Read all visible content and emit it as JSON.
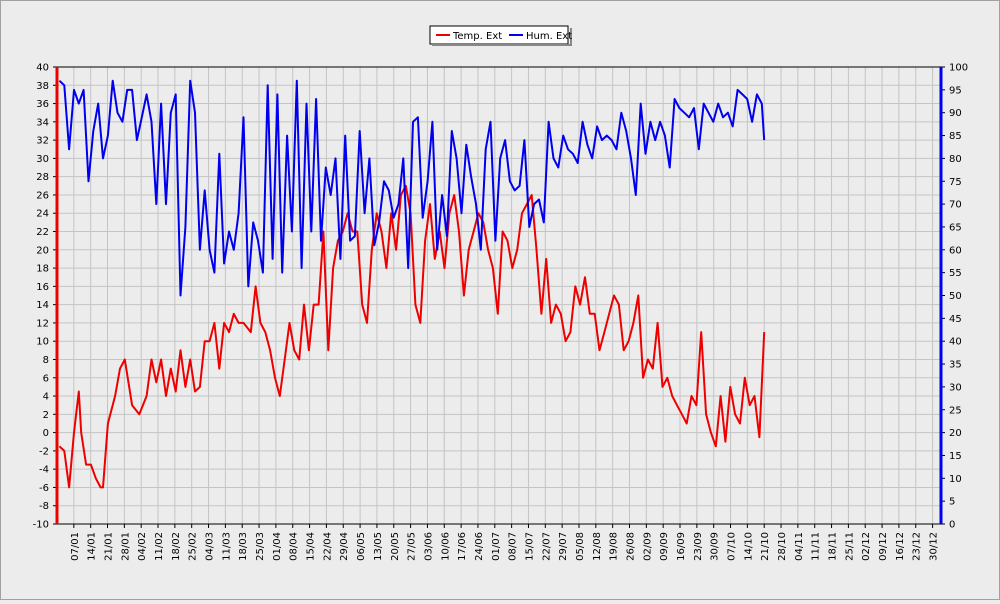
{
  "chart_data": {
    "type": "line",
    "legend_position": "top-center",
    "grid": true,
    "xlabel": "",
    "ylabel_left": "",
    "ylabel_right": "",
    "y_left": {
      "range": [
        -10,
        40
      ],
      "ticks": [
        "-10",
        "-8",
        "-6",
        "-4",
        "-2",
        "0",
        "2",
        "4",
        "6",
        "8",
        "10",
        "12",
        "14",
        "16",
        "18",
        "20",
        "22",
        "24",
        "26",
        "28",
        "30",
        "32",
        "34",
        "36",
        "38",
        "40"
      ]
    },
    "y_right": {
      "range": [
        0,
        100
      ],
      "ticks": [
        "0",
        "5",
        "10",
        "15",
        "20",
        "25",
        "30",
        "35",
        "40",
        "45",
        "50",
        "55",
        "60",
        "65",
        "70",
        "75",
        "80",
        "85",
        "90",
        "95",
        "100"
      ]
    },
    "x_range_days": 365,
    "x_ticks": [
      "07/01",
      "14/01",
      "21/01",
      "28/01",
      "04/02",
      "11/02",
      "18/02",
      "25/02",
      "04/03",
      "11/03",
      "18/03",
      "25/03",
      "01/04",
      "08/04",
      "15/04",
      "22/04",
      "29/04",
      "06/05",
      "13/05",
      "20/05",
      "27/05",
      "03/06",
      "10/06",
      "17/06",
      "24/06",
      "01/07",
      "08/07",
      "15/07",
      "22/07",
      "29/07",
      "05/08",
      "12/08",
      "19/08",
      "26/08",
      "02/09",
      "09/09",
      "16/09",
      "23/09",
      "30/09",
      "07/10",
      "14/10",
      "21/10",
      "28/10",
      "04/11",
      "11/11",
      "18/11",
      "25/11",
      "02/12",
      "09/12",
      "16/12",
      "23/12",
      "30/12"
    ],
    "series": [
      {
        "name": "Temp. Ext",
        "axis": "left",
        "color": "#ee0000",
        "points": [
          [
            1,
            -1.5
          ],
          [
            3,
            -2
          ],
          [
            5,
            -6
          ],
          [
            7,
            0
          ],
          [
            9,
            4.5
          ],
          [
            10,
            0
          ],
          [
            12,
            -3.5
          ],
          [
            14,
            -3.5
          ],
          [
            16,
            -5
          ],
          [
            18,
            -6
          ],
          [
            19,
            -6
          ],
          [
            21,
            1
          ],
          [
            24,
            4
          ],
          [
            26,
            7
          ],
          [
            28,
            8
          ],
          [
            31,
            3
          ],
          [
            34,
            2
          ],
          [
            37,
            4
          ],
          [
            39,
            8
          ],
          [
            41,
            5.5
          ],
          [
            43,
            8
          ],
          [
            45,
            4
          ],
          [
            47,
            7
          ],
          [
            49,
            4.5
          ],
          [
            51,
            9
          ],
          [
            53,
            5
          ],
          [
            55,
            8
          ],
          [
            57,
            4.5
          ],
          [
            59,
            5
          ],
          [
            61,
            10
          ],
          [
            63,
            10
          ],
          [
            65,
            12
          ],
          [
            67,
            7
          ],
          [
            69,
            12
          ],
          [
            71,
            11
          ],
          [
            73,
            13
          ],
          [
            75,
            12
          ],
          [
            77,
            12
          ],
          [
            80,
            11
          ],
          [
            82,
            16
          ],
          [
            84,
            12
          ],
          [
            86,
            11
          ],
          [
            88,
            9
          ],
          [
            90,
            6
          ],
          [
            92,
            4
          ],
          [
            94,
            8
          ],
          [
            96,
            12
          ],
          [
            98,
            9
          ],
          [
            100,
            8
          ],
          [
            102,
            14
          ],
          [
            104,
            9
          ],
          [
            106,
            14
          ],
          [
            108,
            14
          ],
          [
            110,
            22
          ],
          [
            112,
            9
          ],
          [
            114,
            18
          ],
          [
            116,
            21
          ],
          [
            118,
            22
          ],
          [
            120,
            24
          ],
          [
            122,
            22
          ],
          [
            124,
            22
          ],
          [
            126,
            14
          ],
          [
            128,
            12
          ],
          [
            130,
            20
          ],
          [
            132,
            24
          ],
          [
            134,
            22
          ],
          [
            136,
            18
          ],
          [
            138,
            24
          ],
          [
            140,
            20
          ],
          [
            142,
            26
          ],
          [
            144,
            27
          ],
          [
            146,
            24
          ],
          [
            148,
            14
          ],
          [
            150,
            12
          ],
          [
            152,
            21
          ],
          [
            154,
            25
          ],
          [
            156,
            19
          ],
          [
            158,
            22
          ],
          [
            160,
            18
          ],
          [
            162,
            24
          ],
          [
            164,
            26
          ],
          [
            166,
            22
          ],
          [
            168,
            15
          ],
          [
            170,
            20
          ],
          [
            172,
            22
          ],
          [
            174,
            24
          ],
          [
            176,
            23
          ],
          [
            178,
            20
          ],
          [
            180,
            18
          ],
          [
            182,
            13
          ],
          [
            184,
            22
          ],
          [
            186,
            21
          ],
          [
            188,
            18
          ],
          [
            190,
            20
          ],
          [
            192,
            24
          ],
          [
            194,
            25
          ],
          [
            196,
            26
          ],
          [
            198,
            20
          ],
          [
            200,
            13
          ],
          [
            202,
            19
          ],
          [
            204,
            12
          ],
          [
            206,
            14
          ],
          [
            208,
            13
          ],
          [
            210,
            10
          ],
          [
            212,
            11
          ],
          [
            214,
            16
          ],
          [
            216,
            14
          ],
          [
            218,
            17
          ],
          [
            220,
            13
          ],
          [
            222,
            13
          ],
          [
            224,
            9
          ],
          [
            226,
            11
          ],
          [
            228,
            13
          ],
          [
            230,
            15
          ],
          [
            232,
            14
          ],
          [
            234,
            9
          ],
          [
            236,
            10
          ],
          [
            238,
            12
          ],
          [
            240,
            15
          ],
          [
            242,
            6
          ],
          [
            244,
            8
          ],
          [
            246,
            7
          ],
          [
            248,
            12
          ],
          [
            250,
            5
          ],
          [
            252,
            6
          ],
          [
            254,
            4
          ],
          [
            256,
            3
          ],
          [
            258,
            2
          ],
          [
            260,
            1
          ],
          [
            262,
            4
          ],
          [
            264,
            3
          ],
          [
            266,
            11
          ],
          [
            268,
            2
          ],
          [
            270,
            0
          ],
          [
            272,
            -1.5
          ],
          [
            274,
            4
          ],
          [
            276,
            -1
          ],
          [
            278,
            5
          ],
          [
            280,
            2
          ],
          [
            282,
            1
          ],
          [
            284,
            6
          ],
          [
            286,
            3
          ],
          [
            288,
            4
          ],
          [
            290,
            -0.5
          ],
          [
            292,
            11
          ]
        ]
      },
      {
        "name": "Hum. Ext",
        "axis": "right",
        "color": "#0000ee",
        "points": [
          [
            1,
            97
          ],
          [
            3,
            96
          ],
          [
            5,
            82
          ],
          [
            7,
            95
          ],
          [
            9,
            92
          ],
          [
            11,
            95
          ],
          [
            13,
            75
          ],
          [
            15,
            86
          ],
          [
            17,
            92
          ],
          [
            19,
            80
          ],
          [
            21,
            85
          ],
          [
            23,
            97
          ],
          [
            25,
            90
          ],
          [
            27,
            88
          ],
          [
            29,
            95
          ],
          [
            31,
            95
          ],
          [
            33,
            84
          ],
          [
            35,
            89
          ],
          [
            37,
            94
          ],
          [
            39,
            88
          ],
          [
            41,
            70
          ],
          [
            43,
            92
          ],
          [
            45,
            70
          ],
          [
            47,
            90
          ],
          [
            49,
            94
          ],
          [
            51,
            50
          ],
          [
            53,
            65
          ],
          [
            55,
            97
          ],
          [
            57,
            90
          ],
          [
            59,
            60
          ],
          [
            61,
            73
          ],
          [
            63,
            60
          ],
          [
            65,
            55
          ],
          [
            67,
            81
          ],
          [
            69,
            57
          ],
          [
            71,
            64
          ],
          [
            73,
            60
          ],
          [
            75,
            68
          ],
          [
            77,
            89
          ],
          [
            79,
            52
          ],
          [
            81,
            66
          ],
          [
            83,
            62
          ],
          [
            85,
            55
          ],
          [
            87,
            96
          ],
          [
            89,
            58
          ],
          [
            91,
            94
          ],
          [
            93,
            55
          ],
          [
            95,
            85
          ],
          [
            97,
            64
          ],
          [
            99,
            97
          ],
          [
            101,
            56
          ],
          [
            103,
            92
          ],
          [
            105,
            64
          ],
          [
            107,
            93
          ],
          [
            109,
            62
          ],
          [
            111,
            78
          ],
          [
            113,
            72
          ],
          [
            115,
            80
          ],
          [
            117,
            58
          ],
          [
            119,
            85
          ],
          [
            121,
            62
          ],
          [
            123,
            63
          ],
          [
            125,
            86
          ],
          [
            127,
            68
          ],
          [
            129,
            80
          ],
          [
            131,
            61
          ],
          [
            133,
            66
          ],
          [
            135,
            75
          ],
          [
            137,
            73
          ],
          [
            139,
            67
          ],
          [
            141,
            70
          ],
          [
            143,
            80
          ],
          [
            145,
            56
          ],
          [
            147,
            88
          ],
          [
            149,
            89
          ],
          [
            151,
            67
          ],
          [
            153,
            75
          ],
          [
            155,
            88
          ],
          [
            157,
            60
          ],
          [
            159,
            72
          ],
          [
            161,
            63
          ],
          [
            163,
            86
          ],
          [
            165,
            80
          ],
          [
            167,
            68
          ],
          [
            169,
            83
          ],
          [
            171,
            76
          ],
          [
            173,
            70
          ],
          [
            175,
            60
          ],
          [
            177,
            82
          ],
          [
            179,
            88
          ],
          [
            181,
            62
          ],
          [
            183,
            80
          ],
          [
            185,
            84
          ],
          [
            187,
            75
          ],
          [
            189,
            73
          ],
          [
            191,
            74
          ],
          [
            193,
            84
          ],
          [
            195,
            65
          ],
          [
            197,
            70
          ],
          [
            199,
            71
          ],
          [
            201,
            66
          ],
          [
            203,
            88
          ],
          [
            205,
            80
          ],
          [
            207,
            78
          ],
          [
            209,
            85
          ],
          [
            211,
            82
          ],
          [
            213,
            81
          ],
          [
            215,
            79
          ],
          [
            217,
            88
          ],
          [
            219,
            83
          ],
          [
            221,
            80
          ],
          [
            223,
            87
          ],
          [
            225,
            84
          ],
          [
            227,
            85
          ],
          [
            229,
            84
          ],
          [
            231,
            82
          ],
          [
            233,
            90
          ],
          [
            235,
            86
          ],
          [
            237,
            80
          ],
          [
            239,
            72
          ],
          [
            241,
            92
          ],
          [
            243,
            81
          ],
          [
            245,
            88
          ],
          [
            247,
            84
          ],
          [
            249,
            88
          ],
          [
            251,
            85
          ],
          [
            253,
            78
          ],
          [
            255,
            93
          ],
          [
            257,
            91
          ],
          [
            259,
            90
          ],
          [
            261,
            89
          ],
          [
            263,
            91
          ],
          [
            265,
            82
          ],
          [
            267,
            92
          ],
          [
            269,
            90
          ],
          [
            271,
            88
          ],
          [
            273,
            92
          ],
          [
            275,
            89
          ],
          [
            277,
            90
          ],
          [
            279,
            87
          ],
          [
            281,
            95
          ],
          [
            283,
            94
          ],
          [
            285,
            93
          ],
          [
            287,
            88
          ],
          [
            289,
            94
          ],
          [
            291,
            92
          ],
          [
            292,
            84
          ]
        ]
      }
    ]
  }
}
